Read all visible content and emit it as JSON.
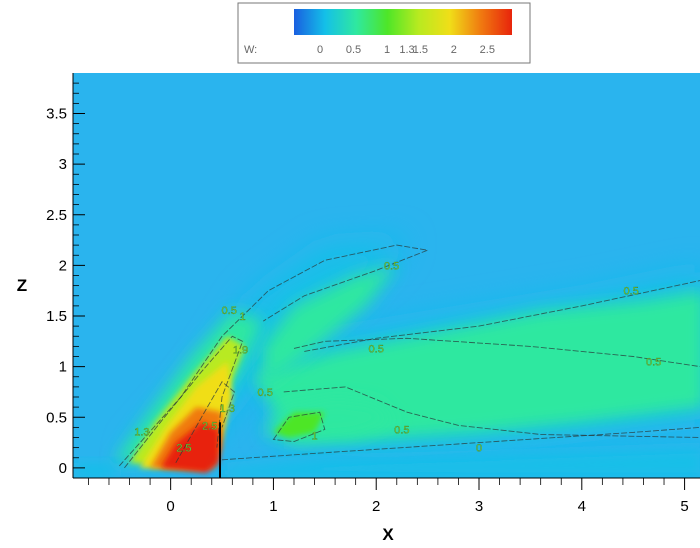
{
  "chart_data": {
    "type": "heatmap",
    "title": "",
    "xlabel": "X",
    "ylabel": "Z",
    "xlim": [
      -0.95,
      5.15
    ],
    "ylim": [
      -0.1,
      3.9
    ],
    "xticks": [
      0,
      1,
      2,
      3,
      4,
      5
    ],
    "xtick_labels": [
      "0",
      "1",
      "2",
      "3",
      "4",
      "5"
    ],
    "yticks": [
      0,
      0.5,
      1,
      1.5,
      2,
      2.5,
      3,
      3.5
    ],
    "ytick_labels": [
      "0",
      "0.5",
      "1",
      "1.5",
      "2",
      "2.5",
      "3",
      "3.5"
    ],
    "grid": false,
    "legend": {
      "placement": "top-center",
      "variable": "W:",
      "levels": [
        0,
        0.5,
        1,
        1.3,
        1.5,
        2,
        2.5
      ],
      "level_labels": [
        "0",
        "0.5",
        "1",
        "1.3",
        "1.5",
        "2",
        "2.5"
      ],
      "colors": [
        "#1a5fe0",
        "#14c0e8",
        "#2fe8a0",
        "#4ee628",
        "#b8ea20",
        "#f0de18",
        "#f07a10",
        "#e8240c"
      ]
    },
    "background_color": "#2ab4ee",
    "contour_labels": [
      {
        "text": "0.5",
        "x": 0.57,
        "z": 1.56
      },
      {
        "text": "1",
        "x": 0.7,
        "z": 1.5
      },
      {
        "text": "1.9",
        "x": 0.68,
        "z": 1.17
      },
      {
        "text": "0.5",
        "x": 0.92,
        "z": 0.75
      },
      {
        "text": "1.3",
        "x": 0.55,
        "z": 0.59
      },
      {
        "text": "2.5",
        "x": 0.38,
        "z": 0.42
      },
      {
        "text": "1.3",
        "x": -0.28,
        "z": 0.36
      },
      {
        "text": "2.5",
        "x": 0.13,
        "z": 0.2
      },
      {
        "text": "0.5",
        "x": 2.15,
        "z": 2.0
      },
      {
        "text": "0.5",
        "x": 4.48,
        "z": 1.75
      },
      {
        "text": "0.5",
        "x": 2.0,
        "z": 1.18
      },
      {
        "text": "0.5",
        "x": 4.7,
        "z": 1.05
      },
      {
        "text": "0.5",
        "x": 2.25,
        "z": 0.38
      },
      {
        "text": "1",
        "x": 1.4,
        "z": 0.32
      },
      {
        "text": "0",
        "x": 3.0,
        "z": 0.2
      }
    ]
  }
}
